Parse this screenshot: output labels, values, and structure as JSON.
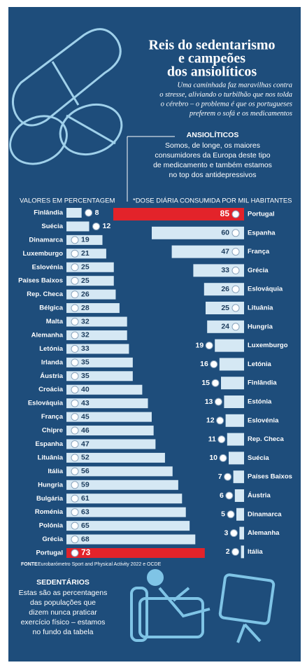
{
  "header": {
    "title": [
      "Reis do sedentarismo",
      "e campeões",
      "dos ansiolíticos"
    ],
    "intro": [
      "Uma caminhada faz maravilhas contra",
      "o stresse, aliviando o turbilhão que nos tolda",
      "o cérebro – o problema é que os portugueses",
      "preferem o sofá e os medicamentos"
    ]
  },
  "ansioliticos": {
    "heading": "ANSIOLÍTICOS",
    "lines": [
      "Somos, de longe, os maiores",
      "consumidores da Europa deste tipo",
      "de medicamento e também estamos",
      "no top dos antidepressivos"
    ]
  },
  "chart_data": [
    {
      "type": "bar",
      "subtitle": "VALORES EM PERCENTAGEM",
      "categories": [
        "Finlândia",
        "Suécia",
        "Dinamarca",
        "Luxemburgo",
        "Eslovénia",
        "Países Baixos",
        "Rep. Checa",
        "Bélgica",
        "Malta",
        "Alemanha",
        "Letónia",
        "Irlanda",
        "Áustria",
        "Croácia",
        "Eslováquia",
        "França",
        "Chipre",
        "Espanha",
        "Lituânia",
        "Itália",
        "Hungria",
        "Bulgária",
        "Roménia",
        "Polónia",
        "Grécia",
        "Portugal"
      ],
      "values": [
        8,
        12,
        19,
        21,
        25,
        25,
        26,
        28,
        32,
        32,
        33,
        35,
        35,
        40,
        43,
        45,
        46,
        47,
        52,
        56,
        59,
        61,
        63,
        65,
        68,
        73
      ],
      "colors": [
        "#d5e8f4",
        "#d5e8f4",
        "#d5e8f4",
        "#d5e8f4",
        "#d5e8f4",
        "#d5e8f4",
        "#d5e8f4",
        "#d5e8f4",
        "#d5e8f4",
        "#d5e8f4",
        "#d5e8f4",
        "#d5e8f4",
        "#d5e8f4",
        "#d5e8f4",
        "#d5e8f4",
        "#d5e8f4",
        "#d5e8f4",
        "#d5e8f4",
        "#d5e8f4",
        "#d5e8f4",
        "#d5e8f4",
        "#d5e8f4",
        "#d5e8f4",
        "#d5e8f4",
        "#d5e8f4",
        "#e3232a"
      ]
    },
    {
      "type": "bar",
      "subtitle": "*DOSE DIÁRIA CONSUMIDA POR MIL HABITANTES",
      "categories": [
        "Portugal",
        "Espanha",
        "França",
        "Grécia",
        "Eslováquia",
        "Lituânia",
        "Hungria",
        "Luxemburgo",
        "Letónia",
        "Finlândia",
        "Estónia",
        "Eslovénia",
        "Rep. Checa",
        "Suécia",
        "Países Baixos",
        "Áustria",
        "Dinamarca",
        "Alemanha",
        "Itália"
      ],
      "values": [
        85,
        60,
        47,
        33,
        26,
        25,
        24,
        19,
        16,
        15,
        13,
        12,
        11,
        10,
        7,
        6,
        5,
        3,
        2
      ],
      "colors": [
        "#e3232a",
        "#d5e8f4",
        "#d5e8f4",
        "#d5e8f4",
        "#d5e8f4",
        "#d5e8f4",
        "#d5e8f4",
        "#d5e8f4",
        "#d5e8f4",
        "#d5e8f4",
        "#d5e8f4",
        "#d5e8f4",
        "#d5e8f4",
        "#d5e8f4",
        "#d5e8f4",
        "#d5e8f4",
        "#d5e8f4",
        "#d5e8f4",
        "#d5e8f4"
      ]
    }
  ],
  "source": {
    "label": "FONTE",
    "text": "Eurobarómetro Sport and Physical Activity 2022 e OCDE"
  },
  "sedentarios": {
    "heading": "SEDENTÁRIOS",
    "lines": [
      "Estas são as percentagens",
      "das populações que",
      "dizem nunca praticar",
      "exercício físico – estamos",
      "no fundo da tabela"
    ]
  }
}
